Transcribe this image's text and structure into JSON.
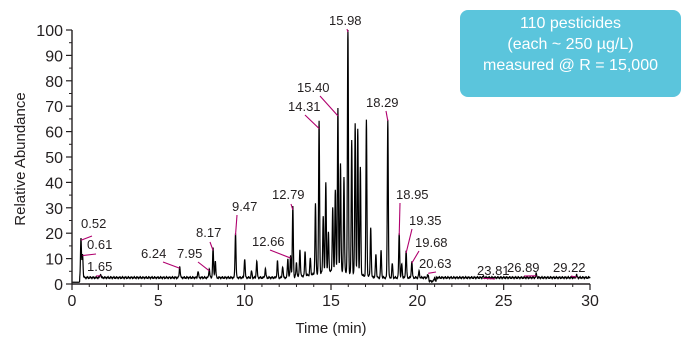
{
  "colors": {
    "trace": "#000000",
    "axis": "#231f20",
    "leader": "#b0006e",
    "box_bg": "#5bc5dc",
    "box_text": "#ffffff"
  },
  "info_box": {
    "line1": "110 pesticides",
    "line2": "(each ~ 250 µg/L)",
    "line3": "measured @ R = 15,000"
  },
  "chart_data": {
    "type": "line",
    "xlabel": "Time (min)",
    "ylabel": "Relative Abundance",
    "xlim": [
      0,
      30
    ],
    "ylim": [
      0,
      100
    ],
    "xticks": [
      0,
      5,
      10,
      15,
      20,
      25,
      30
    ],
    "yticks": [
      0,
      10,
      20,
      30,
      40,
      50,
      60,
      70,
      80,
      90,
      100
    ],
    "xtick_labels": [
      "0",
      "5",
      "10",
      "15",
      "20",
      "25",
      "30"
    ],
    "ytick_labels": [
      "0",
      "10",
      "20",
      "30",
      "40",
      "50",
      "60",
      "70",
      "80",
      "90",
      "100"
    ],
    "grid": false,
    "baseline": 2.5,
    "peaks": [
      {
        "label": "0.52",
        "x": 0.52,
        "y": 18
      },
      {
        "label": "0.61",
        "x": 0.61,
        "y": 12
      },
      {
        "label": "1.65",
        "x": 1.65,
        "y": 4
      },
      {
        "label": "6.24",
        "x": 6.24,
        "y": 7
      },
      {
        "label": "7.95",
        "x": 7.95,
        "y": 6
      },
      {
        "label": "8.17",
        "x": 8.17,
        "y": 14
      },
      {
        "label": "9.47",
        "x": 9.47,
        "y": 20
      },
      {
        "label": "12.66",
        "x": 12.66,
        "y": 11
      },
      {
        "label": "12.79",
        "x": 12.79,
        "y": 30
      },
      {
        "label": "14.31",
        "x": 14.31,
        "y": 62
      },
      {
        "label": "15.40",
        "x": 15.4,
        "y": 67
      },
      {
        "label": "15.98",
        "x": 15.98,
        "y": 100
      },
      {
        "label": "18.29",
        "x": 18.29,
        "y": 65
      },
      {
        "label": "18.95",
        "x": 18.95,
        "y": 20
      },
      {
        "label": "19.35",
        "x": 19.35,
        "y": 13
      },
      {
        "label": "19.68",
        "x": 19.68,
        "y": 9
      },
      {
        "label": "20.63",
        "x": 20.63,
        "y": 5
      },
      {
        "label": "23.81",
        "x": 23.81,
        "y": 3
      },
      {
        "label": "26.89",
        "x": 26.89,
        "y": 4
      },
      {
        "label": "29.22",
        "x": 29.22,
        "y": 3.5
      }
    ],
    "unlabeled_peaks": [
      {
        "x": 7.3,
        "y": 5
      },
      {
        "x": 8.3,
        "y": 9
      },
      {
        "x": 10.0,
        "y": 10
      },
      {
        "x": 10.4,
        "y": 5
      },
      {
        "x": 10.7,
        "y": 9
      },
      {
        "x": 11.2,
        "y": 6
      },
      {
        "x": 11.9,
        "y": 9
      },
      {
        "x": 12.2,
        "y": 7
      },
      {
        "x": 12.5,
        "y": 10
      },
      {
        "x": 13.0,
        "y": 8
      },
      {
        "x": 13.2,
        "y": 13
      },
      {
        "x": 13.5,
        "y": 12
      },
      {
        "x": 13.8,
        "y": 9
      },
      {
        "x": 14.1,
        "y": 30
      },
      {
        "x": 14.55,
        "y": 25
      },
      {
        "x": 14.7,
        "y": 38
      },
      {
        "x": 14.85,
        "y": 18
      },
      {
        "x": 15.1,
        "y": 28
      },
      {
        "x": 15.25,
        "y": 35
      },
      {
        "x": 15.55,
        "y": 45
      },
      {
        "x": 15.75,
        "y": 40
      },
      {
        "x": 16.2,
        "y": 55
      },
      {
        "x": 16.4,
        "y": 62
      },
      {
        "x": 16.55,
        "y": 60
      },
      {
        "x": 16.7,
        "y": 45
      },
      {
        "x": 17.05,
        "y": 64
      },
      {
        "x": 17.3,
        "y": 22
      },
      {
        "x": 17.6,
        "y": 12
      },
      {
        "x": 17.9,
        "y": 13
      },
      {
        "x": 18.55,
        "y": 8
      },
      {
        "x": 19.1,
        "y": 8
      },
      {
        "x": 20.1,
        "y": 5
      },
      {
        "x": 21.0,
        "y": 4
      }
    ]
  }
}
